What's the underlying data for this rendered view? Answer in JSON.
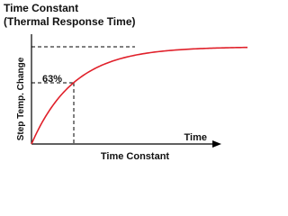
{
  "header": {
    "title": "Time Constant",
    "subtitle": "(Thermal Response Time)"
  },
  "diagram": {
    "y_axis_label": "Step Temp. Change",
    "x_axis_end_label": "Time",
    "x_axis_label": "Time Constant",
    "marker_label": "63%"
  }
}
